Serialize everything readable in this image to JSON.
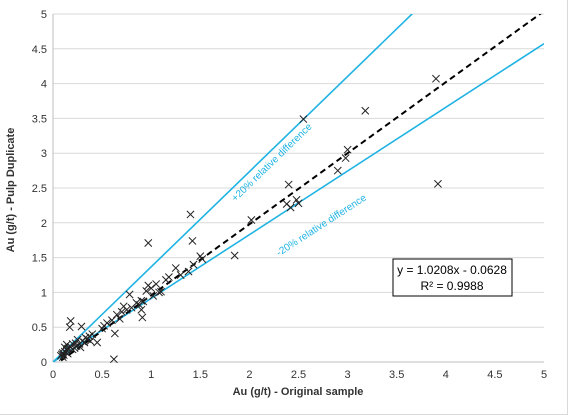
{
  "chart_data": {
    "type": "scatter",
    "xlabel": "Au (g/t) - Original sample",
    "ylabel": "Au (g/t) - Pulp Duplicate",
    "xlim": [
      0,
      5
    ],
    "ylim": [
      0,
      5
    ],
    "x_ticks": [
      "0",
      "0.5",
      "1",
      "1.5",
      "2",
      "2.5",
      "3",
      "3.5",
      "4",
      "4.5",
      "5"
    ],
    "y_ticks": [
      "0",
      "0.5",
      "1",
      "1.5",
      "2",
      "2.5",
      "3",
      "3.5",
      "4",
      "4.5",
      "5"
    ],
    "grid": "horizontal",
    "marker": "x",
    "colors": {
      "points": "#222222",
      "bounds": "#1FB3E3",
      "trend": "#000000",
      "grid": "#d9d9d9",
      "axis": "#bfbfbf"
    },
    "lines": [
      {
        "label": "+20% relative difference",
        "slope": 1.3676,
        "intercept": 0,
        "style": "solid",
        "color": "#1FB3E3"
      },
      {
        "label": "-20% relative difference",
        "slope": 0.9148,
        "intercept": 0,
        "style": "solid",
        "color": "#1FB3E3"
      },
      {
        "label": "",
        "slope": 1.0208,
        "intercept": -0.0628,
        "style": "dashed",
        "color": "#000000"
      }
    ],
    "annotations": [
      {
        "text": "+20% relative difference",
        "x": 2.25,
        "y": 2.75,
        "angle_slope": 1.3676
      },
      {
        "text": "-20% relative difference",
        "x": 2.75,
        "y": 2.1,
        "angle_slope": 0.9148
      }
    ],
    "equation": {
      "line1": "y = 1.0208x - 0.0628",
      "line2": "R² = 0.9988"
    },
    "points": [
      [
        0.08,
        0.09
      ],
      [
        0.09,
        0.11
      ],
      [
        0.1,
        0.07
      ],
      [
        0.1,
        0.13
      ],
      [
        0.11,
        0.1
      ],
      [
        0.12,
        0.15
      ],
      [
        0.12,
        0.21
      ],
      [
        0.13,
        0.14
      ],
      [
        0.14,
        0.17
      ],
      [
        0.14,
        0.25
      ],
      [
        0.15,
        0.19
      ],
      [
        0.15,
        0.12
      ],
      [
        0.16,
        0.2
      ],
      [
        0.17,
        0.5
      ],
      [
        0.18,
        0.59
      ],
      [
        0.18,
        0.22
      ],
      [
        0.2,
        0.18
      ],
      [
        0.2,
        0.26
      ],
      [
        0.22,
        0.2
      ],
      [
        0.23,
        0.27
      ],
      [
        0.24,
        0.23
      ],
      [
        0.25,
        0.32
      ],
      [
        0.27,
        0.26
      ],
      [
        0.28,
        0.21
      ],
      [
        0.29,
        0.51
      ],
      [
        0.3,
        0.3
      ],
      [
        0.32,
        0.28
      ],
      [
        0.33,
        0.35
      ],
      [
        0.35,
        0.33
      ],
      [
        0.37,
        0.37
      ],
      [
        0.38,
        0.3
      ],
      [
        0.4,
        0.4
      ],
      [
        0.45,
        0.28
      ],
      [
        0.5,
        0.48
      ],
      [
        0.52,
        0.52
      ],
      [
        0.55,
        0.56
      ],
      [
        0.6,
        0.6
      ],
      [
        0.62,
        0.04
      ],
      [
        0.63,
        0.41
      ],
      [
        0.65,
        0.68
      ],
      [
        0.68,
        0.62
      ],
      [
        0.7,
        0.72
      ],
      [
        0.72,
        0.8
      ],
      [
        0.75,
        0.75
      ],
      [
        0.78,
        0.97
      ],
      [
        0.8,
        0.78
      ],
      [
        0.85,
        0.85
      ],
      [
        0.88,
        0.82
      ],
      [
        0.9,
        0.88
      ],
      [
        0.9,
        0.75
      ],
      [
        0.91,
        0.64
      ],
      [
        0.92,
        0.87
      ],
      [
        0.95,
        1.02
      ],
      [
        0.97,
        1.1
      ],
      [
        0.97,
        1.71
      ],
      [
        1.0,
        1.06
      ],
      [
        1.02,
        0.95
      ],
      [
        1.05,
        1.12
      ],
      [
        1.08,
        1.0
      ],
      [
        1.1,
        1.01
      ],
      [
        1.15,
        1.18
      ],
      [
        1.18,
        1.22
      ],
      [
        1.25,
        1.35
      ],
      [
        1.3,
        1.25
      ],
      [
        1.38,
        1.3
      ],
      [
        1.4,
        2.12
      ],
      [
        1.42,
        1.74
      ],
      [
        1.43,
        1.4
      ],
      [
        1.5,
        1.52
      ],
      [
        1.52,
        1.48
      ],
      [
        1.85,
        1.53
      ],
      [
        2.02,
        2.04
      ],
      [
        2.38,
        2.27
      ],
      [
        2.4,
        2.55
      ],
      [
        2.42,
        2.22
      ],
      [
        2.48,
        2.33
      ],
      [
        2.5,
        2.28
      ],
      [
        2.55,
        3.49
      ],
      [
        2.9,
        2.75
      ],
      [
        2.98,
        2.93
      ],
      [
        3.0,
        3.05
      ],
      [
        3.18,
        3.61
      ],
      [
        3.9,
        4.07
      ],
      [
        3.92,
        2.56
      ]
    ]
  }
}
